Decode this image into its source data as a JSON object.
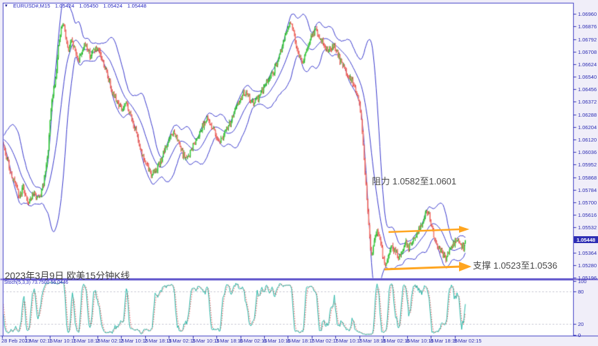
{
  "header": {
    "symbol_period": "EURUSD#,M15",
    "open": "1.05424",
    "high": "1.05450",
    "low": "1.05424",
    "close": "1.05448",
    "dropdown_icon": "▼"
  },
  "price_axis": {
    "labels": [
      "1.06960",
      "1.06876",
      "1.06792",
      "1.06708",
      "1.06624",
      "1.06540",
      "1.06456",
      "1.06372",
      "1.06288",
      "1.06204",
      "1.06120",
      "1.06036",
      "1.05952",
      "1.05868",
      "1.05784",
      "1.05700",
      "1.05616",
      "1.05532",
      "1.05448",
      "1.05364",
      "1.05280",
      "1.05196"
    ],
    "current_index": 18,
    "current_price": "1.05448"
  },
  "time_axis": {
    "labels": [
      "28 Feb 2023",
      "1 Mar 02:15",
      "1 Mar 10:15",
      "1 Mar 18:15",
      "2 Mar 02:15",
      "2 Mar 10:15",
      "2 Mar 18:15",
      "3 Mar 02:15",
      "3 Mar 10:15",
      "3 Mar 18:15",
      "6 Mar 02:15",
      "6 Mar 10:15",
      "6 Mar 18:15",
      "7 Mar 02:15",
      "7 Mar 10:15",
      "7 Mar 18:15",
      "8 Mar 02:15",
      "8 Mar 10:15",
      "8 Mar 18:15",
      "9 Mar 02:15"
    ]
  },
  "stoch_axis": {
    "labels": [
      "100",
      "80",
      "20",
      "0"
    ],
    "values": [
      100,
      80,
      20,
      0
    ]
  },
  "indicator": {
    "label": "Stoch(5,3,3) 73.7500 56.0446",
    "name": "Stoch(5,3,3)",
    "k_value": "73.7500",
    "d_value": "56.0446"
  },
  "annotations": {
    "resistance_text": "阻力 1.0582至1.0601",
    "support_text": "支撑 1.0523至1.0536",
    "date_text": "2023年3月9日 欧美15分钟K线"
  },
  "colors": {
    "background": "#f0eef9",
    "pane_bg": "#ffffff",
    "pane_border": "#4040c6",
    "separator": "#6a5acd",
    "band": "#3535cc",
    "bull_body": "#42d245",
    "bull_wick": "#1fa21f",
    "bear_body": "#f57d72",
    "bear_wick": "#dd3333",
    "axis_text": "#2b2bb2",
    "header_text": "#2525c0",
    "annotation_text": "#474747",
    "orange": "#ffa51f",
    "stoch_k": "#22b5a5",
    "stoch_d": "#e04848",
    "grid_dotted": "#b9b9c9",
    "price_tag_bg": "#2d2db4",
    "price_tag_text": "#ffffff"
  },
  "chart_data": {
    "type": "candlestick",
    "symbol": "EURUSD#",
    "timeframe": "M15",
    "current_bar": {
      "open": 1.05424,
      "high": 1.0545,
      "low": 1.05424,
      "close": 1.05448
    },
    "levels": {
      "resistance_zone": [
        1.0582,
        1.0601
      ],
      "support_zone": [
        1.0523,
        1.0536
      ]
    },
    "y_axis": {
      "min": 1.052,
      "max": 1.0703,
      "tick_step": 0.00084
    },
    "overlays": [
      "Bollinger Bands (blue)",
      "Stochastic(5,3,3) sub-window"
    ],
    "stochastic": {
      "k": 73.75,
      "d": 56.0446,
      "levels": [
        20,
        80
      ]
    },
    "price_path": [
      [
        2,
        1.0612
      ],
      [
        8,
        1.0601
      ],
      [
        14,
        1.0592
      ],
      [
        20,
        1.0584
      ],
      [
        27,
        1.0574
      ],
      [
        33,
        1.058
      ],
      [
        40,
        1.057
      ],
      [
        48,
        1.0576
      ],
      [
        56,
        1.0572
      ],
      [
        62,
        1.0581
      ],
      [
        68,
        1.0599
      ],
      [
        74,
        1.0636
      ],
      [
        80,
        1.0654
      ],
      [
        85,
        1.0678
      ],
      [
        90,
        1.069
      ],
      [
        94,
        1.0684
      ],
      [
        98,
        1.0671
      ],
      [
        103,
        1.0678
      ],
      [
        108,
        1.0672
      ],
      [
        113,
        1.0665
      ],
      [
        118,
        1.0672
      ],
      [
        124,
        1.0676
      ],
      [
        130,
        1.0668
      ],
      [
        136,
        1.0673
      ],
      [
        142,
        1.0671
      ],
      [
        147,
        1.0666
      ],
      [
        152,
        1.0659
      ],
      [
        158,
        1.065
      ],
      [
        163,
        1.0643
      ],
      [
        170,
        1.0637
      ],
      [
        176,
        1.0632
      ],
      [
        182,
        1.0636
      ],
      [
        188,
        1.0629
      ],
      [
        194,
        1.062
      ],
      [
        200,
        1.0611
      ],
      [
        206,
        1.0601
      ],
      [
        212,
        1.0594
      ],
      [
        218,
        1.0589
      ],
      [
        224,
        1.0592
      ],
      [
        230,
        1.0595
      ],
      [
        236,
        1.0603
      ],
      [
        243,
        1.0611
      ],
      [
        250,
        1.0617
      ],
      [
        257,
        1.0611
      ],
      [
        263,
        1.0603
      ],
      [
        270,
        1.0599
      ],
      [
        277,
        1.0606
      ],
      [
        284,
        1.0613
      ],
      [
        291,
        1.062
      ],
      [
        298,
        1.0626
      ],
      [
        305,
        1.0622
      ],
      [
        312,
        1.0615
      ],
      [
        318,
        1.0611
      ],
      [
        325,
        1.0617
      ],
      [
        332,
        1.0623
      ],
      [
        339,
        1.0631
      ],
      [
        346,
        1.0638
      ],
      [
        353,
        1.0644
      ],
      [
        360,
        1.064
      ],
      [
        367,
        1.0636
      ],
      [
        374,
        1.0641
      ],
      [
        381,
        1.0647
      ],
      [
        388,
        1.0653
      ],
      [
        395,
        1.0657
      ],
      [
        402,
        1.0665
      ],
      [
        408,
        1.0675
      ],
      [
        414,
        1.0684
      ],
      [
        420,
        1.0691
      ],
      [
        426,
        1.068
      ],
      [
        432,
        1.0668
      ],
      [
        438,
        1.0664
      ],
      [
        444,
        1.0673
      ],
      [
        450,
        1.0681
      ],
      [
        456,
        1.0686
      ],
      [
        462,
        1.068
      ],
      [
        468,
        1.0676
      ],
      [
        475,
        1.0672
      ],
      [
        482,
        1.0675
      ],
      [
        489,
        1.0668
      ],
      [
        496,
        1.0661
      ],
      [
        503,
        1.0655
      ],
      [
        510,
        1.065
      ],
      [
        516,
        1.0643
      ],
      [
        521,
        1.0631
      ],
      [
        525,
        1.0608
      ],
      [
        529,
        1.058
      ],
      [
        533,
        1.0553
      ],
      [
        537,
        1.0534
      ],
      [
        541,
        1.0546
      ],
      [
        545,
        1.0553
      ],
      [
        549,
        1.0546
      ],
      [
        553,
        1.0535
      ],
      [
        557,
        1.0529
      ],
      [
        561,
        1.0534
      ],
      [
        566,
        1.0541
      ],
      [
        571,
        1.0538
      ],
      [
        576,
        1.0533
      ],
      [
        581,
        1.0539
      ],
      [
        586,
        1.0543
      ],
      [
        591,
        1.054
      ],
      [
        596,
        1.0544
      ],
      [
        601,
        1.0548
      ],
      [
        606,
        1.0553
      ],
      [
        611,
        1.0556
      ],
      [
        616,
        1.0566
      ],
      [
        620,
        1.0562
      ],
      [
        625,
        1.0551
      ],
      [
        630,
        1.0543
      ],
      [
        635,
        1.0539
      ],
      [
        640,
        1.0535
      ],
      [
        645,
        1.0533
      ],
      [
        650,
        1.0538
      ],
      [
        655,
        1.0542
      ],
      [
        660,
        1.0546
      ],
      [
        665,
        1.0542
      ],
      [
        670,
        1.054
      ],
      [
        674,
        1.05448
      ]
    ],
    "render": {
      "candles": 500,
      "seed": 9,
      "noise": 0.0002,
      "bollinger_period": 20,
      "bollinger_dev": 1.9,
      "stochastic_params": [
        5,
        3,
        3
      ]
    }
  }
}
